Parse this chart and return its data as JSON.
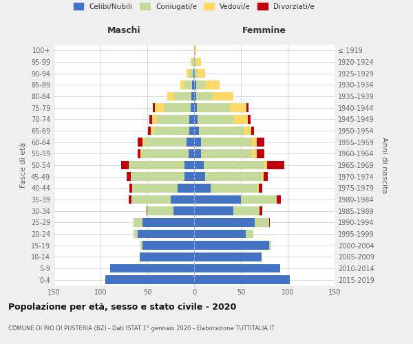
{
  "age_groups": [
    "0-4",
    "5-9",
    "10-14",
    "15-19",
    "20-24",
    "25-29",
    "30-34",
    "35-39",
    "40-44",
    "45-49",
    "50-54",
    "55-59",
    "60-64",
    "65-69",
    "70-74",
    "75-79",
    "80-84",
    "85-89",
    "90-94",
    "95-99",
    "100+"
  ],
  "birth_years": [
    "2015-2019",
    "2010-2014",
    "2005-2009",
    "2000-2004",
    "1995-1999",
    "1990-1994",
    "1985-1989",
    "1980-1984",
    "1975-1979",
    "1970-1974",
    "1965-1969",
    "1960-1964",
    "1955-1959",
    "1950-1954",
    "1945-1949",
    "1940-1944",
    "1935-1939",
    "1930-1934",
    "1925-1929",
    "1920-1924",
    "≤ 1919"
  ],
  "colors": {
    "celibi": "#4472c4",
    "coniugati": "#c5d99b",
    "vedovi": "#ffd966",
    "divorziati": "#c0000c"
  },
  "maschi": {
    "celibi": [
      95,
      90,
      58,
      55,
      60,
      55,
      22,
      25,
      18,
      10,
      10,
      6,
      8,
      5,
      5,
      4,
      3,
      2,
      1,
      0,
      0
    ],
    "coniugati": [
      0,
      0,
      0,
      2,
      5,
      10,
      28,
      42,
      48,
      58,
      60,
      50,
      45,
      38,
      35,
      28,
      18,
      8,
      4,
      2,
      0
    ],
    "vedovi": [
      0,
      0,
      0,
      0,
      0,
      0,
      0,
      0,
      0,
      0,
      0,
      1,
      2,
      3,
      5,
      10,
      8,
      5,
      3,
      2,
      0
    ],
    "divorziati": [
      0,
      0,
      0,
      0,
      0,
      0,
      1,
      3,
      3,
      4,
      8,
      3,
      5,
      3,
      3,
      2,
      0,
      0,
      0,
      0,
      0
    ]
  },
  "femmine": {
    "celibi": [
      102,
      92,
      72,
      80,
      55,
      65,
      42,
      50,
      18,
      12,
      10,
      7,
      7,
      5,
      4,
      3,
      2,
      2,
      1,
      0,
      0
    ],
    "coniugati": [
      0,
      0,
      0,
      2,
      8,
      15,
      28,
      38,
      50,
      60,
      65,
      55,
      55,
      48,
      38,
      35,
      18,
      10,
      3,
      2,
      0
    ],
    "vedovi": [
      0,
      0,
      0,
      0,
      0,
      0,
      0,
      0,
      1,
      2,
      3,
      5,
      5,
      8,
      15,
      18,
      22,
      15,
      8,
      5,
      2
    ],
    "divorziati": [
      0,
      0,
      0,
      0,
      0,
      1,
      3,
      5,
      4,
      5,
      18,
      8,
      8,
      3,
      3,
      2,
      0,
      0,
      0,
      0,
      0
    ]
  },
  "xlim": 150,
  "title": "Popolazione per età, sesso e stato civile - 2020",
  "subtitle": "COMUNE DI RIO DI PUSTERIA (BZ) - Dati ISTAT 1° gennaio 2020 - Elaborazione TUTTITALIA.IT",
  "ylabel": "Fasce di età",
  "ylabel_right": "Anni di nascita",
  "header_left": "Maschi",
  "header_right": "Femmine",
  "legend_labels": [
    "Celibi/Nubili",
    "Coniugati/e",
    "Vedovi/e",
    "Divorziati/e"
  ],
  "bg_color": "#f0f0f0",
  "plot_bg": "#ffffff"
}
